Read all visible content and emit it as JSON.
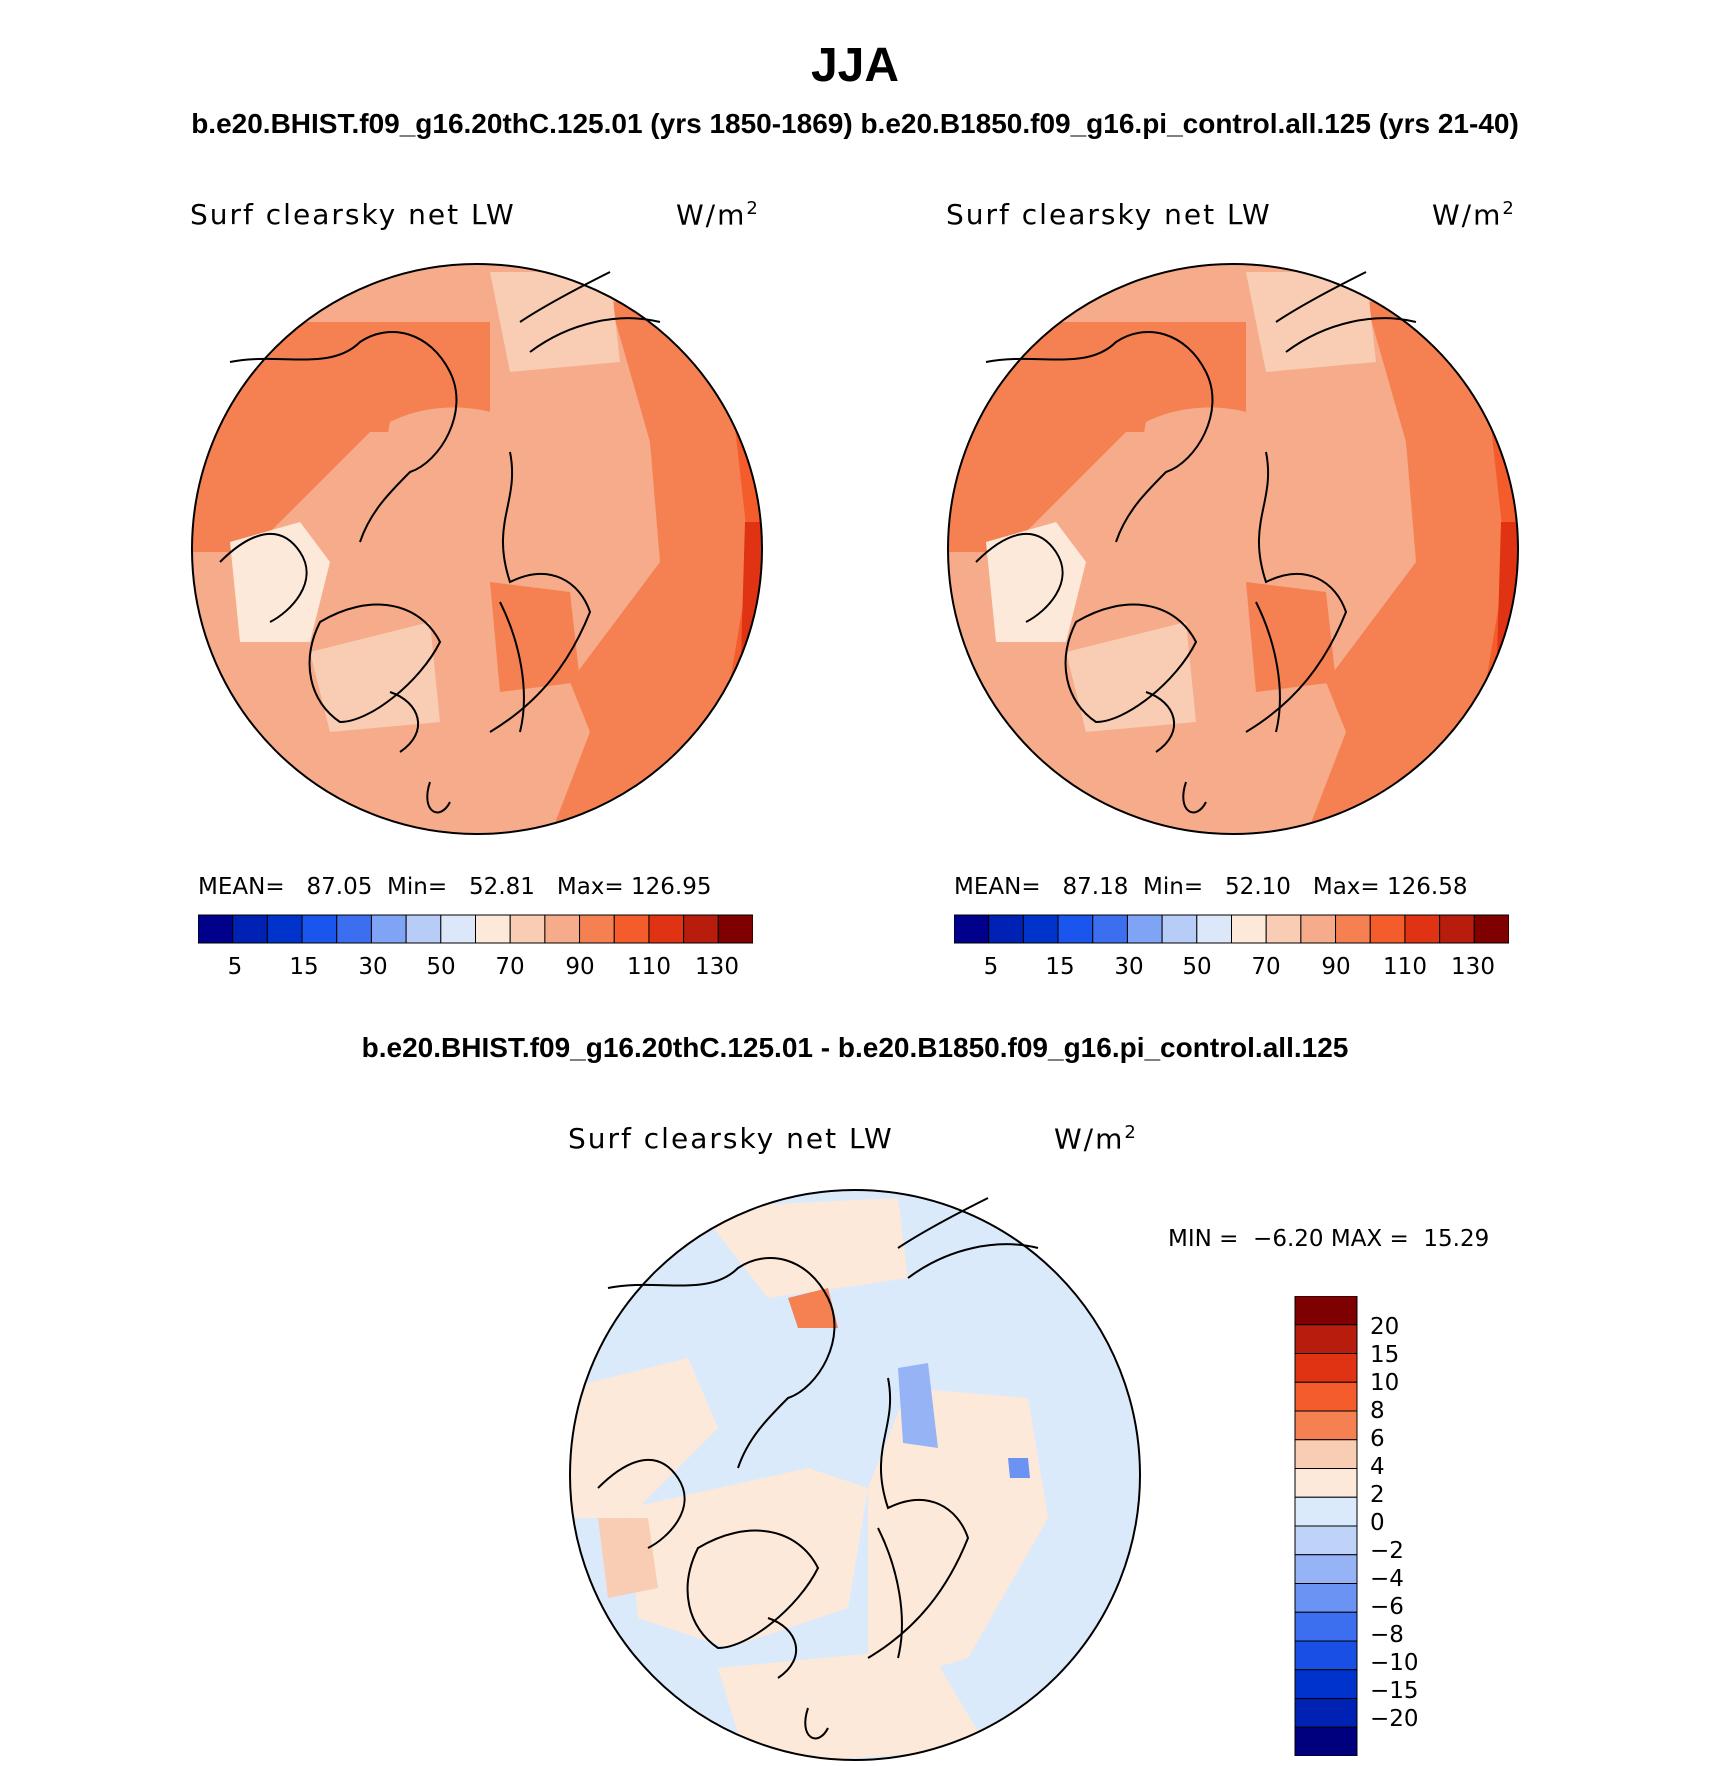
{
  "title": "JJA",
  "subtitle_top": "b.e20.BHIST.f09_g16.20thC.125.01 (yrs 1850-1869)  b.e20.B1850.f09_g16.pi_control.all.125 (yrs 21-40)",
  "subtitle_diff": "b.e20.BHIST.f09_g16.20thC.125.01 - b.e20.B1850.f09_g16.pi_control.all.125",
  "colors": {
    "abs_scale": [
      "#00008b",
      "#0022b4",
      "#0033cc",
      "#1a55ee",
      "#3b6ff0",
      "#7fa4f5",
      "#b7ccf7",
      "#dce8fa",
      "#fde9d9",
      "#f9ccb4",
      "#f6ab8a",
      "#f58152",
      "#f45c2b",
      "#e03314",
      "#b81c0c",
      "#7f0000"
    ],
    "diff_scale": [
      "#00007f",
      "#0022b4",
      "#0033cc",
      "#1a4fe6",
      "#3b6ff0",
      "#6b93f3",
      "#96b4f5",
      "#bfd3f8",
      "#daeafb",
      "#fde9d9",
      "#f9ccb4",
      "#f58152",
      "#f45c2b",
      "#e03314",
      "#b81c0c",
      "#7f0000"
    ]
  },
  "chart_data": [
    {
      "type": "heatmap",
      "panel": "left",
      "variable": "Surf clearsky net LW",
      "units": "W/m",
      "units_superscript": "2",
      "stats": {
        "mean_label": "MEAN=",
        "mean": "87.05",
        "min_label": "Min=",
        "min": "52.81",
        "max_label": "Max=",
        "max": "126.95"
      },
      "colorbar_ticks": [
        "5",
        "15",
        "30",
        "50",
        "70",
        "90",
        "110",
        "130"
      ]
    },
    {
      "type": "heatmap",
      "panel": "right",
      "variable": "Surf clearsky net LW",
      "units": "W/m",
      "units_superscript": "2",
      "stats": {
        "mean_label": "MEAN=",
        "mean": "87.18",
        "min_label": "Min=",
        "min": "52.10",
        "max_label": "Max=",
        "max": "126.58"
      },
      "colorbar_ticks": [
        "5",
        "15",
        "30",
        "50",
        "70",
        "90",
        "110",
        "130"
      ]
    },
    {
      "type": "heatmap",
      "panel": "difference",
      "variable": "Surf clearsky net LW",
      "units": "W/m",
      "units_superscript": "2",
      "stats": {
        "min_label": "MIN =",
        "min": "−6.20",
        "max_label": "MAX =",
        "max": "15.29"
      },
      "colorbar_ticks": [
        "20",
        "15",
        "10",
        "8",
        "6",
        "4",
        "2",
        "0",
        "−2",
        "−4",
        "−6",
        "−8",
        "−10",
        "−15",
        "−20"
      ]
    }
  ]
}
